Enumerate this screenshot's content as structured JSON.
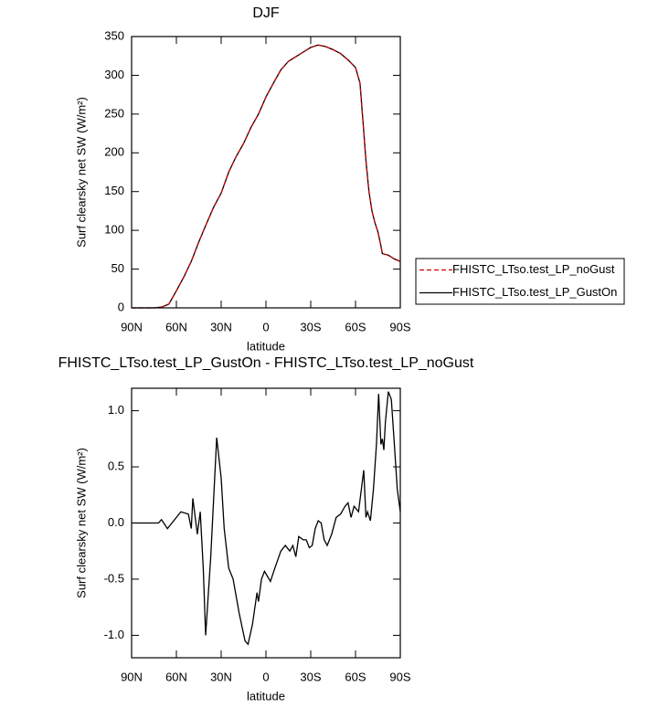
{
  "chart_data": [
    {
      "type": "line",
      "title": "DJF",
      "xlabel": "latitude",
      "ylabel": "Surf clearsky net SW (W/m²)",
      "xlim": [
        90,
        -90
      ],
      "xticks": [
        {
          "value": 90,
          "label": "90N"
        },
        {
          "value": 60,
          "label": "60N"
        },
        {
          "value": 30,
          "label": "30N"
        },
        0,
        {
          "value": -30,
          "label": "30S"
        },
        {
          "value": -60,
          "label": "60S"
        },
        {
          "value": -90,
          "label": "90S"
        }
      ],
      "ylim": [
        0,
        350
      ],
      "yticks": [
        0,
        50,
        100,
        150,
        200,
        250,
        300,
        350
      ],
      "legend": "outside right",
      "x": [
        90,
        85,
        80,
        75,
        70,
        65,
        60,
        55,
        50,
        45,
        40,
        35,
        30,
        25,
        20,
        15,
        10,
        5,
        0,
        -5,
        -10,
        -15,
        -20,
        -25,
        -30,
        -35,
        -40,
        -45,
        -50,
        -55,
        -60,
        -63,
        -65,
        -67,
        -69,
        -71,
        -73,
        -75,
        -77,
        -78,
        -82,
        -86,
        -90
      ],
      "series": [
        {
          "name": "FHISTC_LTso.test_LP_noGust",
          "color": "#cc0000",
          "dashed": true,
          "values": [
            0,
            0,
            0,
            0,
            1,
            5,
            22,
            40,
            60,
            85,
            108,
            130,
            148,
            175,
            195,
            212,
            233,
            250,
            272,
            290,
            307,
            318,
            324,
            330,
            336,
            339,
            337,
            333,
            328,
            320,
            310,
            290,
            240,
            190,
            150,
            125,
            110,
            98,
            80,
            70,
            68,
            63,
            60
          ]
        },
        {
          "name": "FHISTC_LTso.test_LP_GustOn",
          "color": "#000000",
          "dashed": false,
          "values": [
            0,
            0,
            0,
            0,
            1,
            5,
            22,
            40,
            60,
            85,
            108,
            130,
            148,
            175,
            195,
            212,
            233,
            250,
            272,
            290,
            307,
            318,
            324,
            330,
            336,
            339,
            337,
            333,
            328,
            320,
            310,
            290,
            240,
            190,
            150,
            125,
            110,
            98,
            80,
            70,
            68,
            63,
            60
          ]
        }
      ]
    },
    {
      "type": "line",
      "title": "FHISTC_LTso.test_LP_GustOn - FHISTC_LTso.test_LP_noGust",
      "xlabel": "latitude",
      "ylabel": "Surf clearsky net SW (W/m²)",
      "xlim": [
        90,
        -90
      ],
      "xticks": [
        {
          "value": 90,
          "label": "90N"
        },
        {
          "value": 60,
          "label": "60N"
        },
        {
          "value": 30,
          "label": "30N"
        },
        0,
        {
          "value": -30,
          "label": "30S"
        },
        {
          "value": -60,
          "label": "60S"
        },
        {
          "value": -90,
          "label": "90S"
        }
      ],
      "ylim": [
        -1.2,
        1.2
      ],
      "yticks": [
        {
          "value": -1,
          "label": "-1.0"
        },
        {
          "value": -0.5,
          "label": "-0.5"
        },
        {
          "value": 0,
          "label": "0.0"
        },
        {
          "value": 0.5,
          "label": "0.5"
        },
        {
          "value": 1,
          "label": "1.0"
        }
      ],
      "x": [
        90,
        80,
        72,
        70,
        66,
        60,
        57,
        52,
        50,
        49,
        46,
        44,
        42,
        40.4,
        37,
        33,
        30,
        28,
        25,
        22,
        18,
        14,
        12,
        9,
        6,
        5,
        3,
        1,
        -3,
        -6,
        -10,
        -13,
        -16,
        -18,
        -20,
        -22,
        -25,
        -27,
        -29,
        -31,
        -33,
        -35,
        -37,
        -39,
        -41,
        -44,
        -47,
        -50,
        -53,
        -55,
        -57,
        -59,
        -62,
        -65.5,
        -67,
        -68,
        -70,
        -72,
        -74,
        -75.5,
        -77,
        -78,
        -79,
        -80,
        -82,
        -84,
        -86,
        -88,
        -90
      ],
      "series": [
        {
          "color": "#000000",
          "dashed": false,
          "values": [
            0,
            0,
            0,
            0.03,
            -0.05,
            0.05,
            0.1,
            0.08,
            -0.05,
            0.22,
            -0.1,
            0.1,
            -0.4,
            -1.0,
            -0.3,
            0.76,
            0.4,
            -0.05,
            -0.4,
            -0.5,
            -0.8,
            -1.05,
            -1.08,
            -0.9,
            -0.62,
            -0.7,
            -0.5,
            -0.43,
            -0.52,
            -0.4,
            -0.25,
            -0.2,
            -0.25,
            -0.2,
            -0.3,
            -0.12,
            -0.15,
            -0.15,
            -0.22,
            -0.2,
            -0.05,
            0.02,
            0,
            -0.15,
            -0.2,
            -0.1,
            0.05,
            0.08,
            0.15,
            0.18,
            0.05,
            0.15,
            0.1,
            0.47,
            0.05,
            0.1,
            0.02,
            0.3,
            0.7,
            1.15,
            0.7,
            0.75,
            0.65,
            0.9,
            1.17,
            1.1,
            0.7,
            0.3,
            0.1
          ]
        }
      ]
    }
  ]
}
